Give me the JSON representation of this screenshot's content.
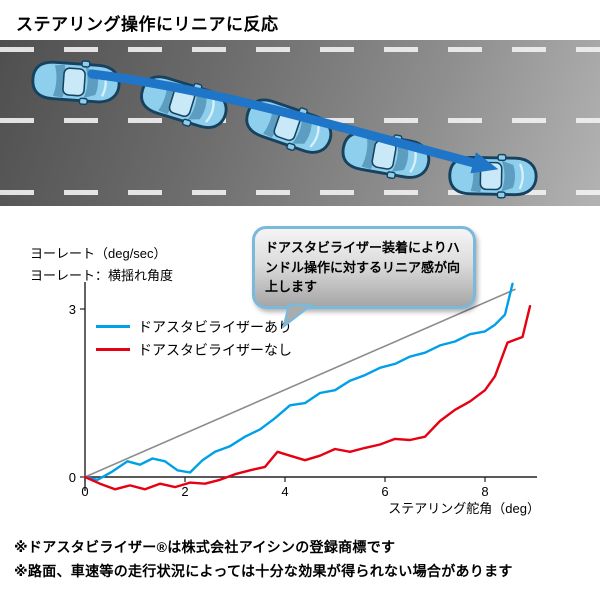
{
  "title": "ステアリング操作にリニアに反応",
  "ylabel_note": {
    "line1": "ヨーレート（deg/sec）",
    "line2": "ヨーレート：横揺れ角度"
  },
  "callout": {
    "text": "ドアスタビライザー装着によりハンドル操作に対するリニア感が向上します"
  },
  "legend": {
    "with_label": "ドアスタビライザーあり",
    "without_label": "ドアスタビライザーなし"
  },
  "xaxis_label": "ステアリング舵角（deg）",
  "footnotes": {
    "line1": "※ドアスタビライザー®は株式会社アイシンの登録商標です",
    "line2": "※路面、車速等の走行状況によっては十分な効果が得られない場合があります"
  },
  "colors": {
    "with_line": "#00a0e9",
    "without_line": "#e60012",
    "reference_line": "#8c8c8c",
    "arrow_blue": "#1f76c8",
    "car_body_blue": "#8ecfee",
    "callout_border": "#7ab8dc"
  },
  "chart_data": {
    "type": "line",
    "title": "",
    "xlabel": "ステアリング舵角（deg）",
    "ylabel": "ヨーレート（deg/sec）",
    "xlim": [
      0,
      9.0
    ],
    "ylim": [
      -0.45,
      3.6
    ],
    "xticks": [
      0,
      2,
      4,
      6,
      8
    ],
    "yticks": [
      0,
      3
    ],
    "grid": false,
    "legend_position": "upper-left-inside",
    "series": [
      {
        "name": "reference-line",
        "role": "reference",
        "color": "#8c8c8c",
        "x": [
          0,
          8.6
        ],
        "y": [
          0,
          3.35
        ]
      },
      {
        "name": "ドアスタビライザーあり",
        "role": "with",
        "color": "#00a0e9",
        "x": [
          0,
          0.25,
          0.55,
          0.85,
          1.1,
          1.35,
          1.6,
          1.85,
          2.1,
          2.35,
          2.6,
          2.9,
          3.2,
          3.5,
          3.8,
          4.1,
          4.4,
          4.7,
          5.0,
          5.3,
          5.6,
          5.9,
          6.2,
          6.5,
          6.8,
          7.1,
          7.4,
          7.7,
          8.0,
          8.2,
          8.4,
          8.55
        ],
        "y": [
          0,
          -0.05,
          0.1,
          0.28,
          0.22,
          0.33,
          0.28,
          0.12,
          0.08,
          0.3,
          0.45,
          0.55,
          0.72,
          0.85,
          1.05,
          1.28,
          1.32,
          1.5,
          1.55,
          1.72,
          1.82,
          1.95,
          2.02,
          2.15,
          2.22,
          2.35,
          2.42,
          2.55,
          2.6,
          2.72,
          2.9,
          3.45
        ]
      },
      {
        "name": "ドアスタビライザーなし",
        "role": "without",
        "color": "#e60012",
        "x": [
          0,
          0.3,
          0.6,
          0.9,
          1.2,
          1.5,
          1.8,
          2.1,
          2.4,
          2.7,
          3.0,
          3.3,
          3.6,
          3.85,
          4.1,
          4.4,
          4.7,
          5.0,
          5.3,
          5.6,
          5.9,
          6.2,
          6.5,
          6.8,
          7.1,
          7.4,
          7.7,
          8.0,
          8.2,
          8.45,
          8.6,
          8.75,
          8.9
        ],
        "y": [
          0,
          -0.12,
          -0.22,
          -0.15,
          -0.22,
          -0.12,
          -0.18,
          -0.1,
          -0.12,
          -0.05,
          0.05,
          0.12,
          0.18,
          0.45,
          0.38,
          0.3,
          0.38,
          0.5,
          0.45,
          0.52,
          0.58,
          0.68,
          0.66,
          0.72,
          1.0,
          1.2,
          1.35,
          1.55,
          1.8,
          2.4,
          2.45,
          2.5,
          3.05
        ]
      }
    ]
  }
}
